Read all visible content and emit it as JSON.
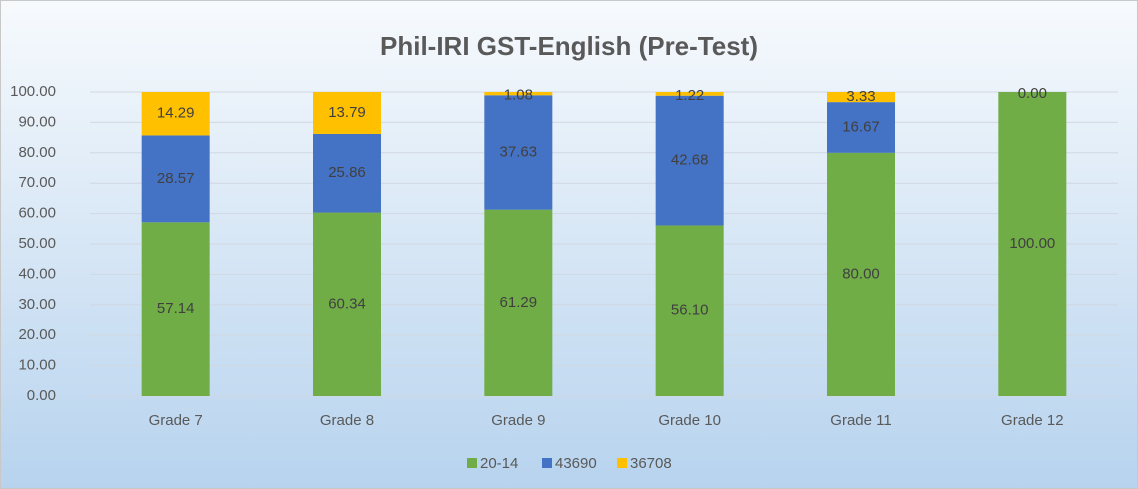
{
  "chart_data": {
    "type": "stacked_bar",
    "title": "Phil-IRI GST-English (Pre-Test)",
    "categories": [
      "Grade 7",
      "Grade 8",
      "Grade 9",
      "Grade 10",
      "Grade 11",
      "Grade 12"
    ],
    "series": [
      {
        "name": "20-14",
        "color": "#70ad47",
        "values": [
          57.14,
          60.34,
          61.29,
          56.1,
          80,
          100
        ],
        "value_labels": [
          "57.14",
          "60.34",
          "61.29",
          "56.10",
          "80.00",
          "100.00"
        ]
      },
      {
        "name": "43690",
        "color": "#4472c4",
        "values": [
          28.57,
          25.86,
          37.63,
          42.68,
          16.67,
          null
        ],
        "value_labels": [
          "28.57",
          "25.86",
          "37.63",
          "42.68",
          "16.67",
          null
        ]
      },
      {
        "name": "36708",
        "color": "#ffc000",
        "values": [
          14.29,
          13.79,
          1.08,
          1.22,
          3.33,
          0
        ],
        "value_labels": [
          "14.29",
          "13.79",
          "1.08",
          "1.22",
          "3.33",
          "0.00"
        ]
      }
    ],
    "ylim": [
      0,
      100
    ],
    "yticks": [
      {
        "value": 0,
        "label": "0.00"
      },
      {
        "value": 10,
        "label": "10.00"
      },
      {
        "value": 20,
        "label": "20.00"
      },
      {
        "value": 30,
        "label": "30.00"
      },
      {
        "value": 40,
        "label": "40.00"
      },
      {
        "value": 50,
        "label": "50.00"
      },
      {
        "value": 60,
        "label": "60.00"
      },
      {
        "value": 70,
        "label": "70.00"
      },
      {
        "value": 80,
        "label": "80.00"
      },
      {
        "value": 90,
        "label": "90.00"
      },
      {
        "value": 100,
        "label": "100.00"
      }
    ],
    "grid": true,
    "legend": "bottom"
  }
}
